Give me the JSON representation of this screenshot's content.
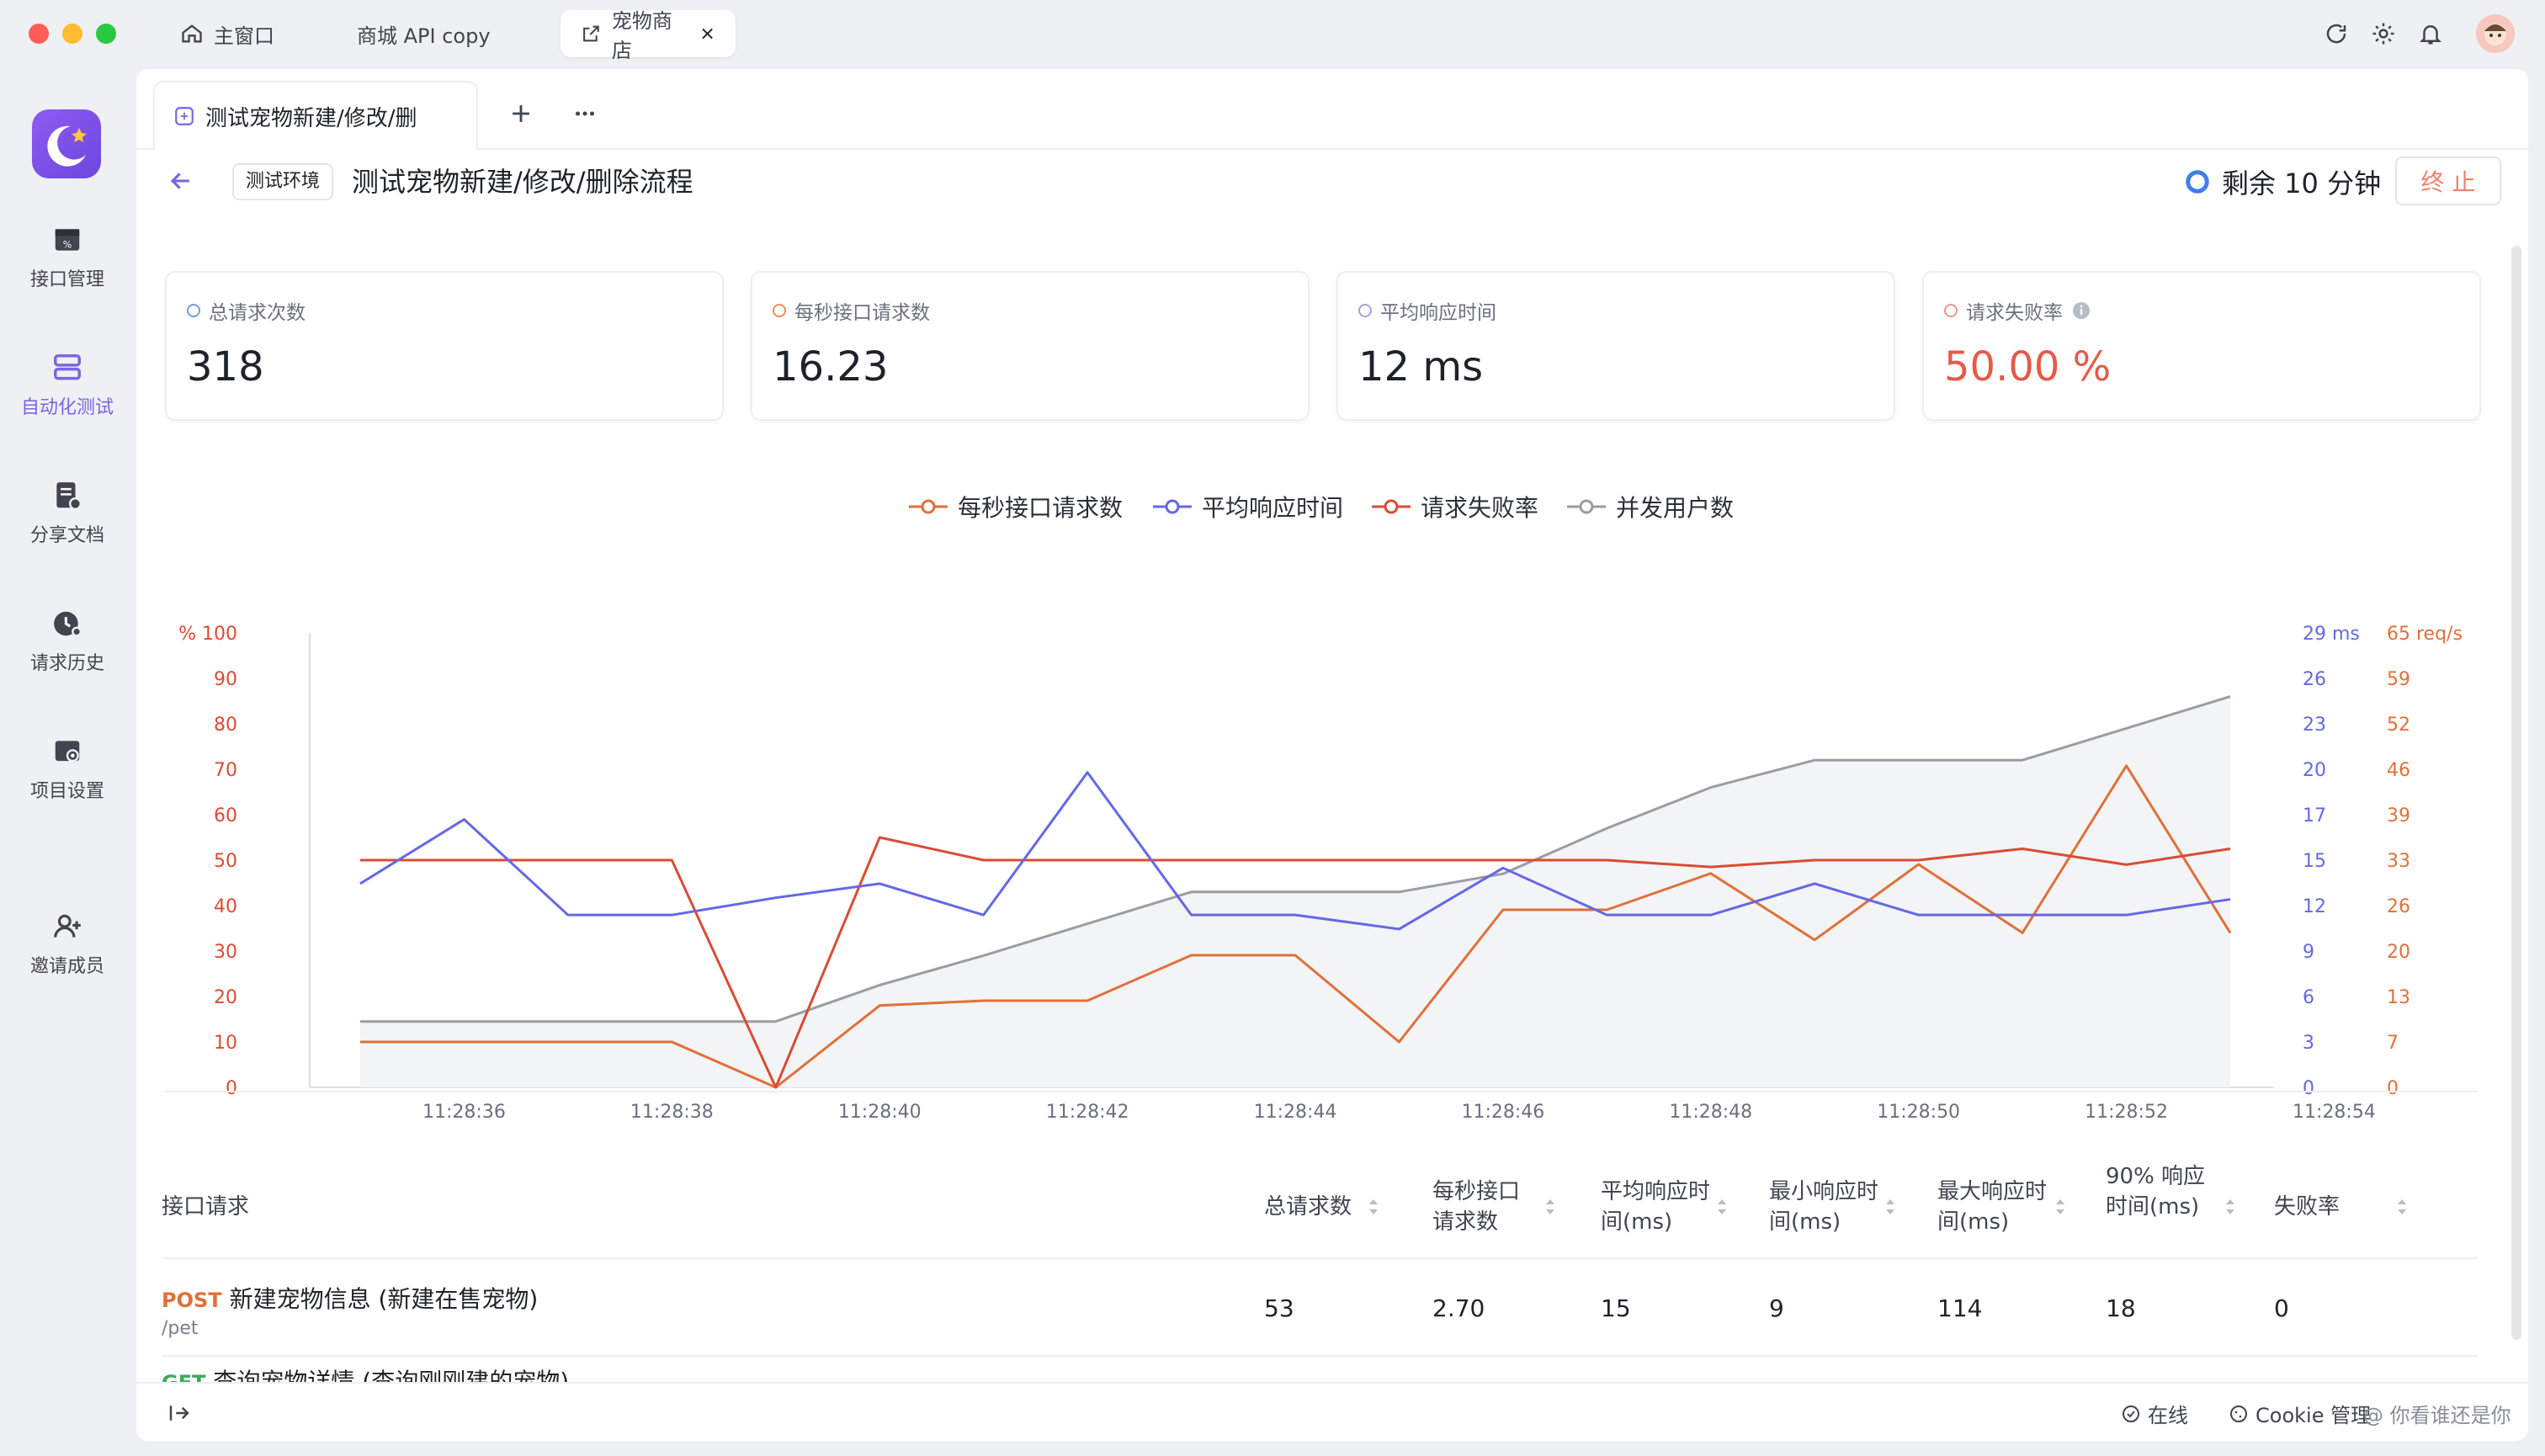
{
  "window": {
    "tabs": [
      {
        "label": "主窗口"
      },
      {
        "label": "商城 API copy"
      },
      {
        "label": "宠物商店"
      }
    ]
  },
  "sidebar": {
    "items": [
      {
        "label": "接口管理"
      },
      {
        "label": "自动化测试"
      },
      {
        "label": "分享文档"
      },
      {
        "label": "请求历史"
      },
      {
        "label": "项目设置"
      },
      {
        "label": "邀请成员"
      }
    ]
  },
  "doc_tab": {
    "label": "测试宠物新建/修改/删"
  },
  "header": {
    "env": "测试环境",
    "title": "测试宠物新建/修改/删除流程",
    "remaining": "剩余 10 分钟",
    "stop": "终 止"
  },
  "stats": [
    {
      "label": "总请求次数",
      "value": "318",
      "color": "#6e9ee0",
      "value_color": "#1f2329"
    },
    {
      "label": "每秒接口请求数",
      "value": "16.23",
      "color": "#e88f5a",
      "value_color": "#1f2329"
    },
    {
      "label": "平均响应时间",
      "value": "12 ms",
      "color": "#a6a2e6",
      "value_color": "#1f2329"
    },
    {
      "label": "请求失败率",
      "value": "50.00 %",
      "color": "#e89690",
      "value_color": "#e35b4a"
    }
  ],
  "chart_data": {
    "type": "line",
    "x": [
      "11:28:35",
      "11:28:36",
      "11:28:37",
      "11:28:38",
      "11:28:39",
      "11:28:40",
      "11:28:41",
      "11:28:42",
      "11:28:43",
      "11:28:44",
      "11:28:45",
      "11:28:46",
      "11:28:47",
      "11:28:48",
      "11:28:49",
      "11:28:50",
      "11:28:51",
      "11:28:52",
      "11:28:53"
    ],
    "x_ticks": [
      "11:28:36",
      "11:28:38",
      "11:28:40",
      "11:28:42",
      "11:28:44",
      "11:28:46",
      "11:28:48",
      "11:28:50",
      "11:28:52",
      "11:28:54"
    ],
    "left_axis": {
      "unit": "%",
      "ticks": [
        "100",
        "90",
        "80",
        "70",
        "60",
        "50",
        "40",
        "30",
        "20",
        "10",
        "0"
      ],
      "ylim": [
        0,
        100
      ]
    },
    "right_axis_ms": {
      "unit": "ms",
      "ticks": [
        "29",
        "26",
        "23",
        "20",
        "17",
        "15",
        "12",
        "9",
        "6",
        "3",
        "0"
      ],
      "ylim": [
        0,
        29
      ]
    },
    "right_axis_req": {
      "unit": "req/s",
      "ticks": [
        "65",
        "59",
        "52",
        "46",
        "39",
        "33",
        "26",
        "20",
        "13",
        "7",
        "0"
      ],
      "ylim": [
        0,
        65
      ]
    },
    "series": [
      {
        "name": "每秒接口请求数",
        "axis": "req",
        "color": "#e0703a",
        "values": [
          6.5,
          6.5,
          6.5,
          6.5,
          0,
          11.7,
          12.4,
          12.4,
          18.9,
          18.9,
          6.5,
          25.4,
          25.4,
          30.6,
          21.1,
          31.9,
          22.1,
          46,
          22.1
        ]
      },
      {
        "name": "平均响应时间",
        "axis": "ms",
        "color": "#6468e6",
        "values": [
          13,
          17.1,
          11,
          11,
          12.1,
          13,
          11,
          20.1,
          11,
          11,
          10.1,
          14,
          11,
          11,
          13,
          11,
          11,
          11,
          12
        ]
      },
      {
        "name": "请求失败率",
        "axis": "pct",
        "color": "#d94c34",
        "values": [
          50,
          50,
          50,
          50,
          0,
          55,
          50,
          50,
          50,
          50,
          50,
          50,
          50,
          48.5,
          50,
          50,
          52.5,
          49,
          52.5
        ]
      },
      {
        "name": "并发用户数",
        "axis": "pct",
        "color": "#999da4",
        "values": [
          14.5,
          14.5,
          14.5,
          14.5,
          14.5,
          22.5,
          29,
          36,
          43,
          43,
          43,
          47,
          57,
          66,
          72,
          72,
          72,
          79,
          86
        ]
      }
    ]
  },
  "table": {
    "headers": [
      "接口请求",
      "总请求数",
      "每秒接口请求数",
      "平均响应时间(ms)",
      "最小响应时间(ms)",
      "最大响应时间(ms)",
      "90% 响应时间(ms)",
      "失败率"
    ],
    "rows": [
      {
        "method": "POST",
        "method_color": "#e0703a",
        "name": "新建宠物信息 (新建在售宠物)",
        "path": "/pet",
        "cells": [
          "53",
          "2.70",
          "15",
          "9",
          "114",
          "18",
          "0"
        ]
      },
      {
        "method": "GET",
        "method_color": "#3fa65f",
        "name": "查询宠物详情 (查询刚刚建的宠物)",
        "path": "",
        "cells": [
          "",
          "",
          "",
          "",
          "",
          "",
          ""
        ]
      }
    ]
  },
  "footer": {
    "online": "在线",
    "cookie": "Cookie 管理",
    "watermark": "@ 你看谁还是你"
  }
}
